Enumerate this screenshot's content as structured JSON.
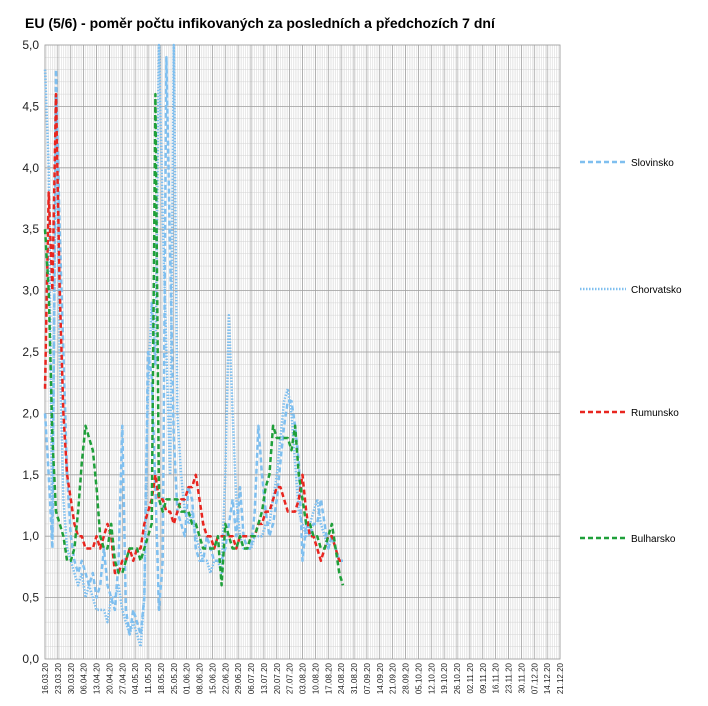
{
  "chart_data": {
    "type": "line",
    "title": "EU (5/6) - poměr počtu infikovaných za posledních a předchozích 7 dní",
    "xlabel": "",
    "ylabel": "",
    "ylim": [
      0,
      5
    ],
    "ytick_labels": [
      "0,0",
      "0,5",
      "1,0",
      "1,5",
      "2,0",
      "2,5",
      "3,0",
      "3,5",
      "4,0",
      "4,5",
      "5,0"
    ],
    "grid": true,
    "legend_position": "right",
    "x_tick_labels": [
      "16.03.20",
      "23.03.20",
      "30.03.20",
      "06.04.20",
      "13.04.20",
      "20.04.20",
      "27.04.20",
      "04.05.20",
      "11.05.20",
      "18.05.20",
      "25.05.20",
      "01.06.20",
      "08.06.20",
      "15.06.20",
      "22.06.20",
      "29.06.20",
      "06.07.20",
      "13.07.20",
      "20.07.20",
      "27.07.20",
      "03.08.20",
      "10.08.20",
      "17.08.20",
      "24.08.20",
      "31.08.20",
      "07.09.20",
      "14.09.20",
      "21.09.20",
      "28.09.20",
      "05.10.20",
      "12.10.20",
      "19.10.20",
      "26.10.20",
      "02.11.20",
      "09.11.20",
      "16.11.20",
      "23.11.20",
      "30.11.20",
      "07.12.20",
      "14.12.20",
      "21.12.20"
    ],
    "x_step_days": 2,
    "series": [
      {
        "name": "Slovinsko",
        "color": "#7fbfef",
        "dash": "dash",
        "values": [
          2.0,
          1.5,
          0.9,
          4.8,
          3.5,
          2.5,
          1.5,
          1.0,
          0.8,
          0.7,
          0.8,
          0.7,
          0.6,
          0.7,
          0.5,
          0.6,
          0.9,
          0.6,
          0.5,
          0.4,
          0.8,
          1.9,
          0.4,
          0.2,
          0.4,
          0.3,
          0.2,
          0.5,
          2.5,
          2.3,
          1.4,
          0.4,
          0.8,
          4.9,
          3.3,
          1.8,
          1.2,
          1.1,
          1.0,
          1.4,
          1.3,
          0.9,
          0.8,
          0.8,
          1.0,
          0.9,
          0.8,
          0.8,
          0.8,
          0.9,
          1.1,
          1.3,
          1.0,
          1.4,
          1.0,
          0.9,
          0.9,
          1.2,
          1.9,
          1.5,
          1.2,
          1.0,
          1.1,
          1.3,
          1.6,
          1.9,
          2.1,
          2.1,
          1.9,
          1.6,
          0.8,
          1.1,
          1.0,
          1.1,
          1.1,
          1.3,
          1.1,
          0.9,
          1.0,
          0.9,
          0.8,
          0.8
        ]
      },
      {
        "name": "Chorvatsko",
        "color": "#7fbfef",
        "dash": "dot",
        "values": [
          4.8,
          4.0,
          1.0,
          4.6,
          2.5,
          1.3,
          0.9,
          0.8,
          0.7,
          0.6,
          0.7,
          0.5,
          0.6,
          0.5,
          0.4,
          0.4,
          0.4,
          0.3,
          0.5,
          0.5,
          0.6,
          0.4,
          0.3,
          0.2,
          0.3,
          0.2,
          0.1,
          0.5,
          2.2,
          2.9,
          2.4,
          5.0,
          3.6,
          2.5,
          1.5,
          5.0,
          2.0,
          1.5,
          1.2,
          1.1,
          1.2,
          1.0,
          0.9,
          0.8,
          0.8,
          0.7,
          0.8,
          0.8,
          0.7,
          1.5,
          2.8,
          2.0,
          1.3,
          1.0,
          0.9,
          0.9,
          0.9,
          1.0,
          1.0,
          1.0,
          1.1,
          1.1,
          1.3,
          1.5,
          1.8,
          2.1,
          2.2,
          2.0,
          1.6,
          1.2,
          1.1,
          1.0,
          1.1,
          1.2,
          1.3,
          1.1,
          1.0,
          0.9,
          1.0,
          0.9,
          0.8,
          0.8
        ]
      },
      {
        "name": "Rumunsko",
        "color": "#e8251f",
        "dash": "dash",
        "values": [
          2.2,
          3.8,
          3.0,
          4.6,
          3.0,
          2.0,
          1.5,
          1.3,
          1.1,
          1.0,
          1.0,
          0.9,
          0.9,
          0.9,
          1.0,
          0.9,
          1.0,
          1.1,
          1.0,
          0.7,
          0.7,
          0.8,
          0.8,
          0.9,
          0.8,
          0.9,
          0.9,
          1.1,
          1.2,
          1.3,
          1.5,
          1.3,
          1.3,
          1.2,
          1.2,
          1.1,
          1.2,
          1.3,
          1.3,
          1.4,
          1.4,
          1.5,
          1.3,
          1.1,
          1.0,
          1.0,
          0.9,
          1.0,
          1.0,
          1.0,
          1.0,
          1.0,
          0.9,
          1.0,
          1.0,
          1.0,
          1.0,
          1.0,
          1.1,
          1.1,
          1.2,
          1.2,
          1.3,
          1.4,
          1.4,
          1.3,
          1.2,
          1.2,
          1.2,
          1.3,
          1.5,
          1.2,
          1.0,
          1.0,
          0.9,
          0.8,
          0.9,
          1.0,
          1.0,
          0.9,
          0.8,
          0.8
        ]
      },
      {
        "name": "Bulharsko",
        "color": "#1fa03a",
        "dash": "dash",
        "values": [
          3.5,
          3.0,
          1.8,
          1.2,
          1.1,
          1.0,
          0.8,
          0.8,
          0.9,
          1.2,
          1.6,
          1.9,
          1.8,
          1.7,
          1.4,
          1.0,
          0.9,
          0.9,
          1.1,
          0.8,
          0.7,
          0.7,
          0.8,
          0.9,
          0.9,
          0.9,
          0.8,
          0.9,
          1.0,
          1.1,
          4.6,
          1.3,
          1.2,
          1.3,
          1.3,
          1.3,
          1.3,
          1.2,
          1.2,
          1.2,
          1.1,
          1.1,
          1.0,
          0.9,
          0.9,
          0.9,
          0.9,
          1.0,
          0.6,
          1.1,
          1.0,
          0.9,
          0.9,
          1.0,
          0.9,
          0.9,
          1.0,
          1.0,
          1.1,
          1.2,
          1.4,
          1.5,
          1.9,
          1.8,
          1.8,
          1.8,
          1.8,
          1.7,
          1.9,
          1.5,
          1.3,
          1.1,
          1.1,
          1.0,
          1.0,
          0.9,
          0.9,
          1.0,
          1.1,
          0.9,
          0.7,
          0.6
        ]
      }
    ]
  }
}
